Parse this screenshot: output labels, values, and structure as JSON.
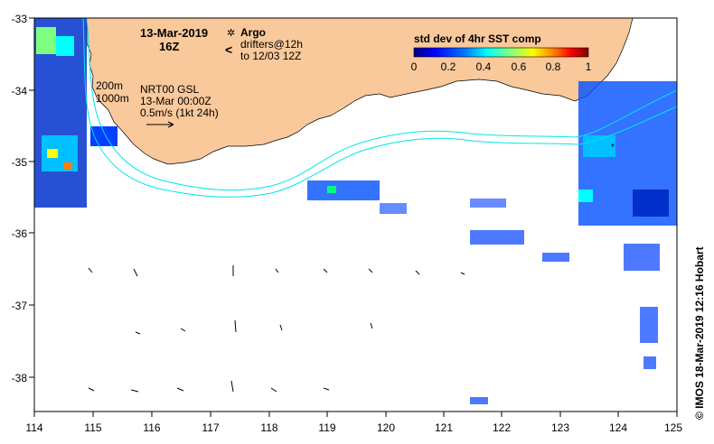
{
  "map": {
    "title_date": "13-Mar-2019",
    "title_hour": "16Z",
    "credit": "© IMOS 18-Mar-2019 12:16 Hobart",
    "longitude_ticks": [
      "114",
      "115",
      "116",
      "117",
      "118",
      "119",
      "120",
      "121",
      "122",
      "123",
      "124",
      "125"
    ],
    "latitude_ticks": [
      "-33",
      "-34",
      "-35",
      "-36",
      "-37",
      "-38"
    ],
    "extent": {
      "lon_min": 114,
      "lon_max": 125,
      "lat_min": -38.5,
      "lat_max": -33
    }
  },
  "legend": {
    "argo_symbol": "✲",
    "argo_label": "Argo",
    "drifters_symbol": "<",
    "drifters_label": "drifters@12h",
    "drifters_sublabel": "to 12/03 12Z",
    "argo_color": "#ff00ff",
    "drifters_color": "#ff00ff"
  },
  "annotations": {
    "contour_200": "200m",
    "contour_1000": "1000m",
    "product": "NRT00 GSL",
    "product_time": "13-Mar 00:00Z",
    "scale_vector": "0.5m/s (1kt 24h)"
  },
  "colorbar": {
    "title": "std dev of 4hr SST comp",
    "ticks": [
      "0",
      "0.2",
      "0.4",
      "0.6",
      "0.8",
      "1"
    ],
    "colors": [
      "#00007f",
      "#0000ff",
      "#007fff",
      "#00ffff",
      "#7fff7f",
      "#ffff00",
      "#ff7f00",
      "#ff0000",
      "#7f0000"
    ]
  },
  "colors": {
    "land": "#f9c89b",
    "ocean": "#ffffff",
    "contour": "#00e5ee"
  }
}
